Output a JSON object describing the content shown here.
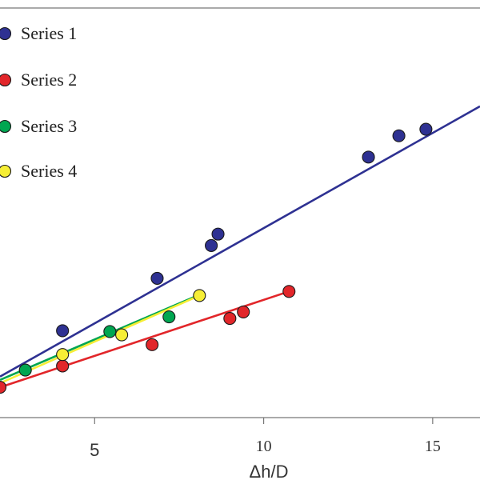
{
  "chart_data": {
    "type": "scatter",
    "title": "",
    "xlabel": "Δh/D",
    "ylabel": "",
    "xlim": [
      2.2,
      16.4
    ],
    "ylim": [
      0.0,
      25.0
    ],
    "grid": false,
    "legend_position": "top-left",
    "x_ticks": [
      {
        "value": 5,
        "label": "5"
      },
      {
        "value": 10,
        "label": "10"
      },
      {
        "value": 15,
        "label": "15"
      }
    ],
    "series": [
      {
        "name": "Series 1",
        "color": "#2e3192",
        "points": [
          [
            4.05,
            5.3
          ],
          [
            6.85,
            8.5
          ],
          [
            8.45,
            10.5
          ],
          [
            8.65,
            11.2
          ],
          [
            13.1,
            15.9
          ],
          [
            14.0,
            17.2
          ],
          [
            14.8,
            17.6
          ]
        ],
        "fit_line": [
          [
            2.2,
            2.5
          ],
          [
            16.4,
            19.0
          ]
        ]
      },
      {
        "name": "Series 2",
        "color": "#e2262a",
        "points": [
          [
            2.2,
            1.85
          ],
          [
            4.05,
            3.15
          ],
          [
            6.7,
            4.45
          ],
          [
            9.0,
            6.05
          ],
          [
            9.4,
            6.45
          ],
          [
            10.75,
            7.7
          ]
        ],
        "fit_line": [
          [
            2.2,
            1.85
          ],
          [
            10.75,
            7.7
          ]
        ]
      },
      {
        "name": "Series 3",
        "color": "#00a651",
        "points": [
          [
            2.95,
            2.9
          ],
          [
            5.45,
            5.25
          ],
          [
            7.2,
            6.15
          ]
        ],
        "fit_line": [
          [
            2.2,
            2.3
          ],
          [
            8.1,
            7.5
          ]
        ]
      },
      {
        "name": "Series 4",
        "color": "#f6ee35",
        "points": [
          [
            4.05,
            3.85
          ],
          [
            5.8,
            5.05
          ],
          [
            8.1,
            7.45
          ]
        ],
        "fit_line": [
          [
            2.2,
            2.1
          ],
          [
            8.1,
            7.45
          ]
        ]
      }
    ]
  }
}
